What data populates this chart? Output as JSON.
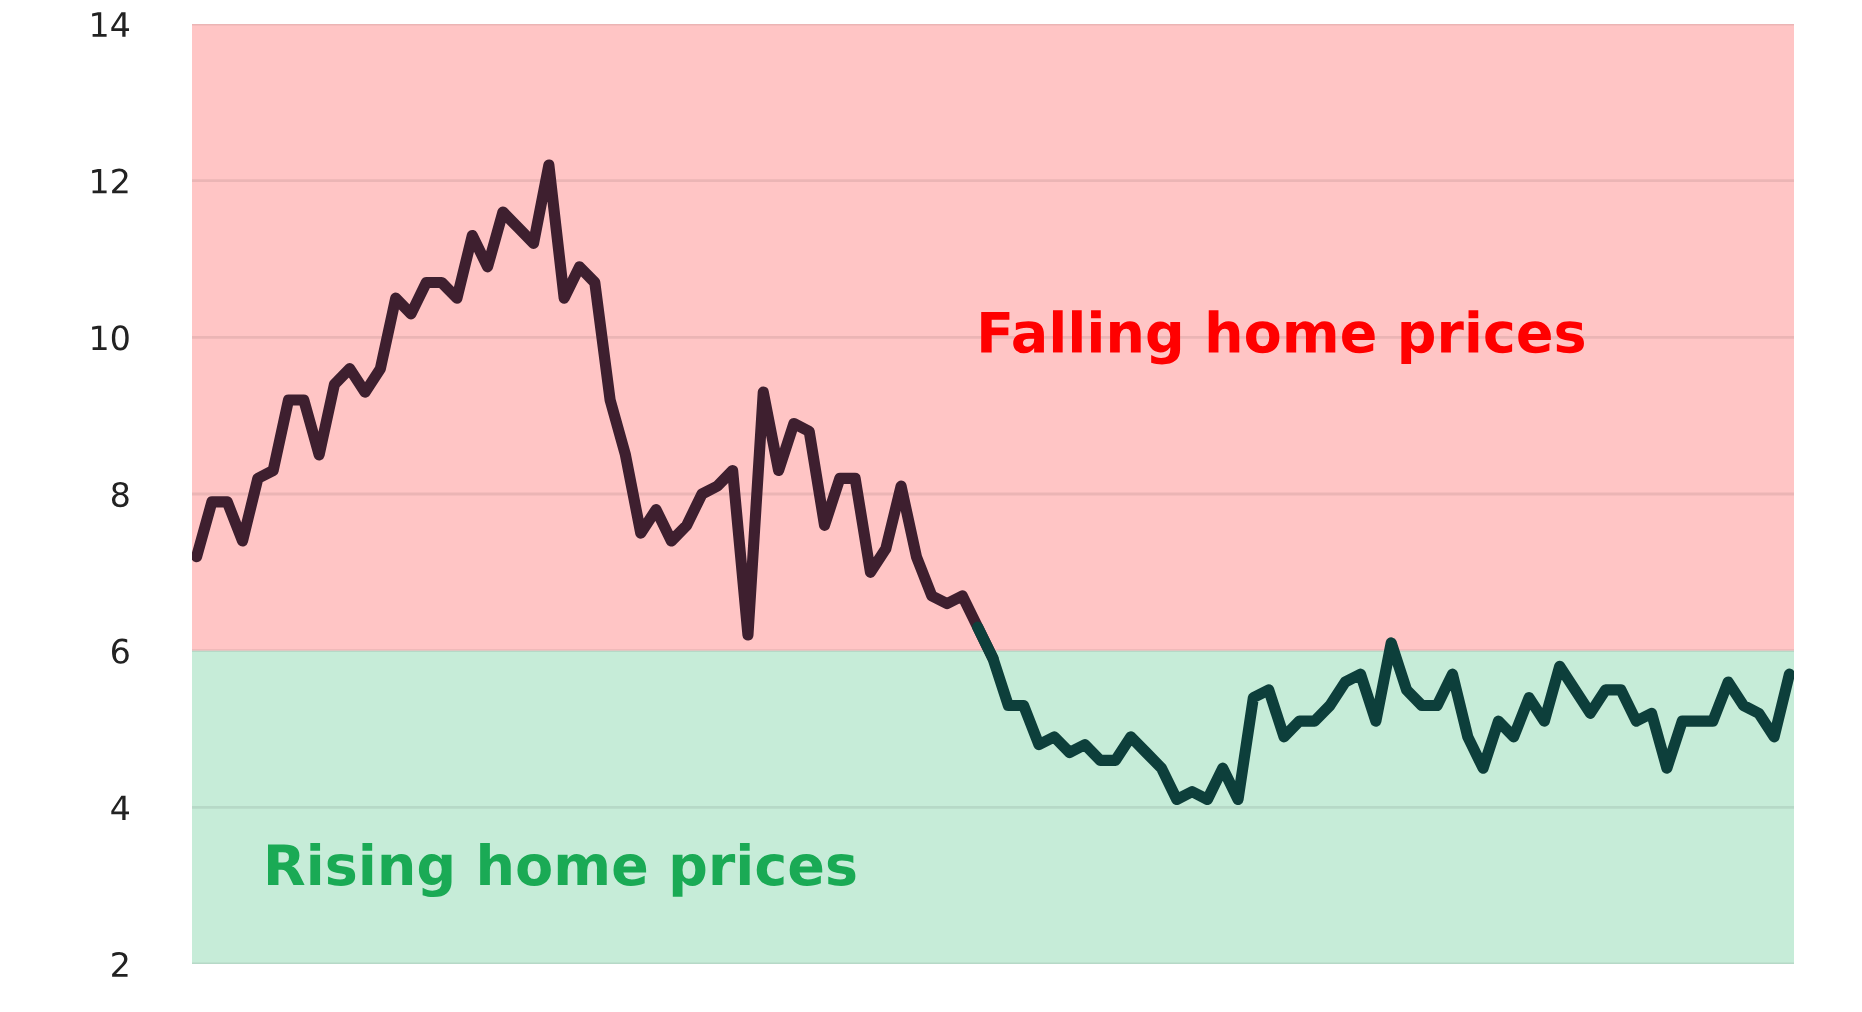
{
  "chart_data": {
    "type": "line",
    "categories": [
      null,
      null,
      null,
      null,
      null,
      null,
      null,
      null,
      null,
      null,
      null,
      null,
      null,
      null,
      null,
      null,
      null,
      null,
      null,
      null,
      null,
      null,
      null,
      null,
      null,
      null,
      null,
      null,
      null,
      null,
      null,
      null,
      null,
      null,
      null,
      null,
      null,
      null,
      null,
      null,
      null,
      null,
      null,
      null,
      null,
      null,
      null,
      null,
      null,
      null,
      null,
      null,
      null,
      null,
      null,
      null,
      null,
      null,
      null,
      null,
      null,
      null,
      null,
      null,
      null,
      null,
      null,
      null,
      null,
      null,
      null,
      null,
      null,
      null,
      null,
      null,
      null,
      null,
      null,
      null,
      null,
      null,
      null,
      null,
      null,
      null,
      null,
      null,
      null,
      null,
      null,
      null,
      null,
      null,
      null,
      null,
      null,
      null,
      null,
      null,
      null,
      null,
      null,
      null,
      null
    ],
    "ylim": [
      2,
      14
    ],
    "yticks": [
      2,
      4,
      6,
      8,
      10,
      12,
      14
    ],
    "tick_labels": "y",
    "grid": "y",
    "marker": "none",
    "line_style": "solid",
    "series": [
      {
        "color": "#3e1f2f",
        "values": [
          7.2,
          7.9,
          7.9,
          7.4,
          8.2,
          8.3,
          9.2,
          9.2,
          8.5,
          9.4,
          9.6,
          9.3,
          9.6,
          10.5,
          10.3,
          10.7,
          10.7,
          10.5,
          11.3,
          10.9,
          11.6,
          11.4,
          11.2,
          12.2,
          10.5,
          10.9,
          10.7,
          9.2,
          8.5,
          7.5,
          7.8,
          7.4,
          7.6,
          8.0,
          8.1,
          8.3,
          6.2,
          9.3,
          8.3,
          8.9,
          8.8,
          7.6,
          8.2,
          8.2,
          7.0,
          7.3,
          8.1,
          7.2,
          6.7,
          6.6,
          6.7,
          6.3,
          5.9,
          null,
          null,
          null,
          null,
          null,
          null,
          null,
          null,
          null,
          null,
          null,
          null,
          null,
          null,
          null,
          null,
          null,
          null,
          null,
          null,
          null,
          null,
          null,
          null,
          null,
          null,
          null,
          null,
          null,
          null,
          null,
          null,
          null,
          null,
          null,
          null,
          null,
          null,
          null,
          null,
          null,
          null,
          null,
          null,
          null,
          null,
          null,
          null,
          null,
          null,
          null,
          null
        ]
      },
      {
        "color": "#0d3f3b",
        "values": [
          null,
          null,
          null,
          null,
          null,
          null,
          null,
          null,
          null,
          null,
          null,
          null,
          null,
          null,
          null,
          null,
          null,
          null,
          null,
          null,
          null,
          null,
          null,
          null,
          null,
          null,
          null,
          null,
          null,
          null,
          null,
          null,
          null,
          null,
          null,
          null,
          null,
          null,
          null,
          null,
          null,
          null,
          null,
          null,
          null,
          null,
          null,
          null,
          null,
          null,
          null,
          6.3,
          5.9,
          5.3,
          5.3,
          4.8,
          4.9,
          4.7,
          4.8,
          4.6,
          4.6,
          4.9,
          4.7,
          4.5,
          4.1,
          4.2,
          4.1,
          4.5,
          4.1,
          5.4,
          5.5,
          4.9,
          5.1,
          5.1,
          5.3,
          5.6,
          5.7,
          5.1,
          6.1,
          5.5,
          5.3,
          5.3,
          5.7,
          4.9,
          4.5,
          5.1,
          4.9,
          5.4,
          5.1,
          5.8,
          5.5,
          5.2,
          5.5,
          5.5,
          5.1,
          5.2,
          4.5,
          5.1,
          5.1,
          5.1,
          5.6,
          5.3,
          5.2,
          4.9,
          5.7
        ]
      }
    ],
    "bands": [
      {
        "axis": "y",
        "from": 6,
        "to": 14,
        "label": "Falling home prices",
        "color": "#ffc5c5"
      },
      {
        "axis": "y",
        "from": 2,
        "to": 6,
        "label": "Rising home prices",
        "color": "#c6ecd8"
      }
    ]
  }
}
